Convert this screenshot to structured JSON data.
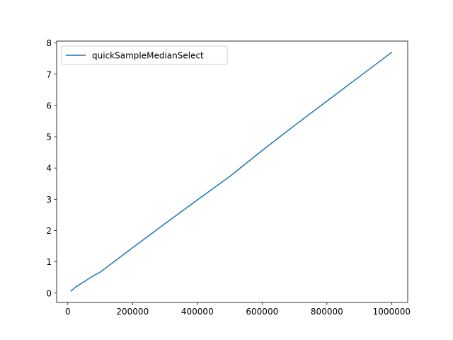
{
  "chart_data": {
    "type": "line",
    "title": "",
    "xlabel": "",
    "ylabel": "",
    "xlim": [
      -34500,
      1049500
    ],
    "ylim": [
      -0.3,
      8.06
    ],
    "x_ticks": [
      0,
      200000,
      400000,
      600000,
      800000,
      1000000
    ],
    "x_tick_labels": [
      "0",
      "200000",
      "400000",
      "600000",
      "800000",
      "1000000"
    ],
    "y_ticks": [
      0,
      1,
      2,
      3,
      4,
      5,
      6,
      7,
      8
    ],
    "y_tick_labels": [
      "0",
      "1",
      "2",
      "3",
      "4",
      "5",
      "6",
      "7",
      "8"
    ],
    "grid": false,
    "legend_position": "upper-left",
    "series": [
      {
        "name": "quickSampleMedianSelect",
        "color": "#1f77b4",
        "x": [
          10000,
          25000,
          50000,
          75000,
          100000,
          200000,
          300000,
          400000,
          500000,
          600000,
          700000,
          800000,
          900000,
          1000000
        ],
        "y": [
          0.07,
          0.2,
          0.36,
          0.53,
          0.67,
          1.45,
          2.22,
          2.98,
          3.73,
          4.56,
          5.36,
          6.14,
          6.92,
          7.7
        ]
      }
    ]
  }
}
